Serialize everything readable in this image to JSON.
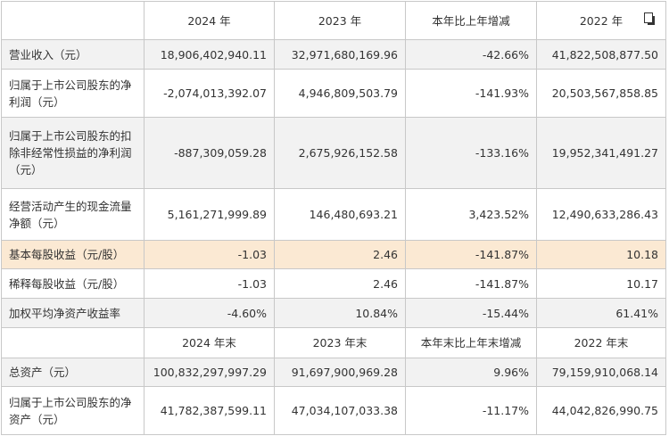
{
  "header": [
    "",
    "2024 年",
    "2023 年",
    "本年比上年增减",
    "2022 年"
  ],
  "rows_main": [
    {
      "label": "营业收入（元）",
      "v2024": "18,906,402,940.11",
      "v2023": "32,971,680,169.96",
      "change": "-42.66%",
      "v2022": "41,822,508,877.50"
    },
    {
      "label": "归属于上市公司股东的净利润（元）",
      "v2024": "-2,074,013,392.07",
      "v2023": "4,946,809,503.79",
      "change": "-141.93%",
      "v2022": "20,503,567,858.85"
    },
    {
      "label": "归属于上市公司股东的扣除非经常性损益的净利润（元）",
      "v2024": "-887,309,059.28",
      "v2023": "2,675,926,152.58",
      "change": "-133.16%",
      "v2022": "19,952,341,491.27"
    },
    {
      "label": "经营活动产生的现金流量净额（元）",
      "v2024": "5,161,271,999.89",
      "v2023": "146,480,693.21",
      "change": "3,423.52%",
      "v2022": "12,490,633,286.43"
    },
    {
      "label": "基本每股收益（元/股）",
      "v2024": "-1.03",
      "v2023": "2.46",
      "change": "-141.87%",
      "v2022": "10.18"
    },
    {
      "label": "稀释每股收益（元/股）",
      "v2024": "-1.03",
      "v2023": "2.46",
      "change": "-141.87%",
      "v2022": "10.17"
    },
    {
      "label": "加权平均净资产收益率",
      "v2024": "-4.60%",
      "v2023": "10.84%",
      "change": "-15.44%",
      "v2022": "61.41%"
    }
  ],
  "header2": [
    "",
    "2024 年末",
    "2023 年末",
    "本年末比上年末增减",
    "2022 年末"
  ],
  "rows_end": [
    {
      "label": "总资产（元）",
      "v2024": "100,832,297,997.29",
      "v2023": "91,697,900,969.28",
      "change": "9.96%",
      "v2022": "79,159,910,068.14"
    },
    {
      "label": "归属于上市公司股东的净资产（元）",
      "v2024": "41,782,387,599.11",
      "v2023": "47,034,107,033.38",
      "change": "-11.17%",
      "v2022": "44,042,826,990.75"
    }
  ],
  "icons": {
    "copy": "copy-icon"
  },
  "colors": {
    "shade": "#f2f2f2",
    "highlight": "#fbe9d3",
    "border": "#c8c8c8"
  }
}
